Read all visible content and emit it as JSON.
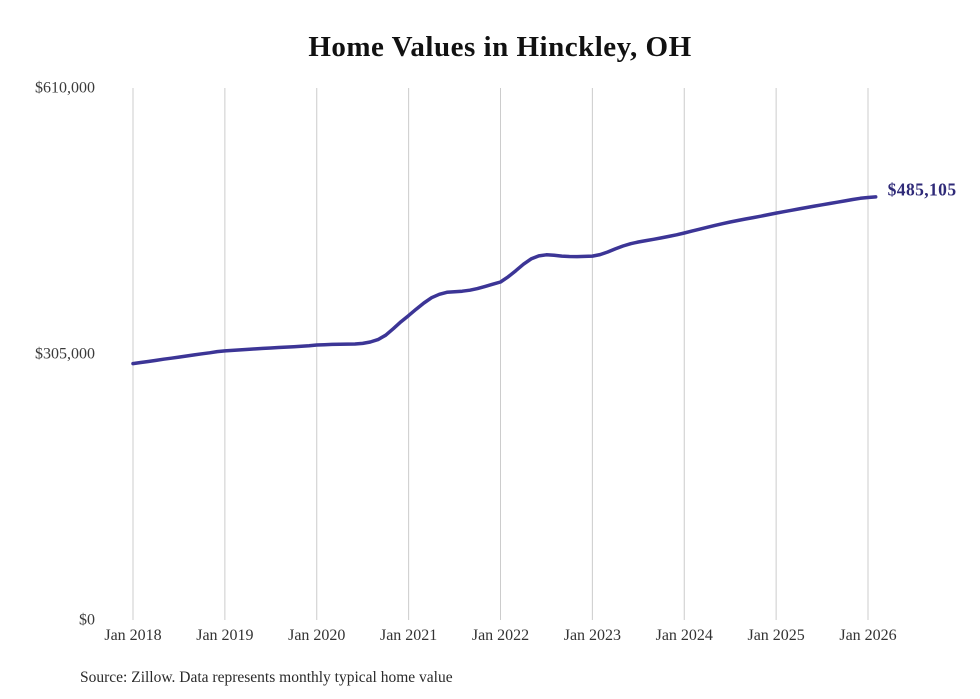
{
  "chart_data": {
    "type": "line",
    "title": "Home Values in Hinckley, OH",
    "source": "Source: Zillow. Data represents monthly typical home value",
    "series_name": "Monthly typical home value",
    "end_label": "$485,105",
    "latest_value": 485105,
    "x_start": "Jan 2018",
    "x_end": "Feb 2026",
    "frequency": "monthly",
    "ylim": [
      0,
      610000
    ],
    "grid": "vertical-only",
    "legend": "none",
    "line_color": "#3c3596",
    "end_label_color": "#2f2a78",
    "gridline_color": "#cccccc",
    "xticks": [
      "Jan 2018",
      "Jan 2019",
      "Jan 2020",
      "Jan 2021",
      "Jan 2022",
      "Jan 2023",
      "Jan 2024",
      "Jan 2025",
      "Jan 2026"
    ],
    "yticks": [
      {
        "label": "$610,000",
        "value": 610000
      },
      {
        "label": "$305,000",
        "value": 305000
      },
      {
        "label": "$0",
        "value": 0
      }
    ],
    "values": [
      294000,
      295200,
      296400,
      297700,
      299000,
      300200,
      301500,
      302700,
      304000,
      305200,
      306400,
      307700,
      308500,
      309100,
      309700,
      310300,
      310900,
      311400,
      311900,
      312400,
      312900,
      313400,
      313900,
      314500,
      315300,
      315700,
      316000,
      316200,
      316300,
      316500,
      317200,
      318800,
      321500,
      326500,
      334000,
      342000,
      349000,
      356500,
      363500,
      369500,
      373500,
      375800,
      376300,
      377000,
      378200,
      380000,
      382500,
      385000,
      387500,
      393500,
      400500,
      408000,
      414000,
      417500,
      418800,
      418200,
      417300,
      416800,
      416700,
      416900,
      417300,
      419000,
      422000,
      425500,
      428800,
      431500,
      433400,
      435000,
      436500,
      438100,
      439800,
      441700,
      443700,
      445900,
      448100,
      450300,
      452400,
      454400,
      456300,
      458100,
      459800,
      461400,
      463000,
      464800,
      466600,
      468200,
      469800,
      471400,
      473000,
      474600,
      476100,
      477600,
      479100,
      480600,
      482100,
      483500,
      484400,
      485105
    ]
  }
}
